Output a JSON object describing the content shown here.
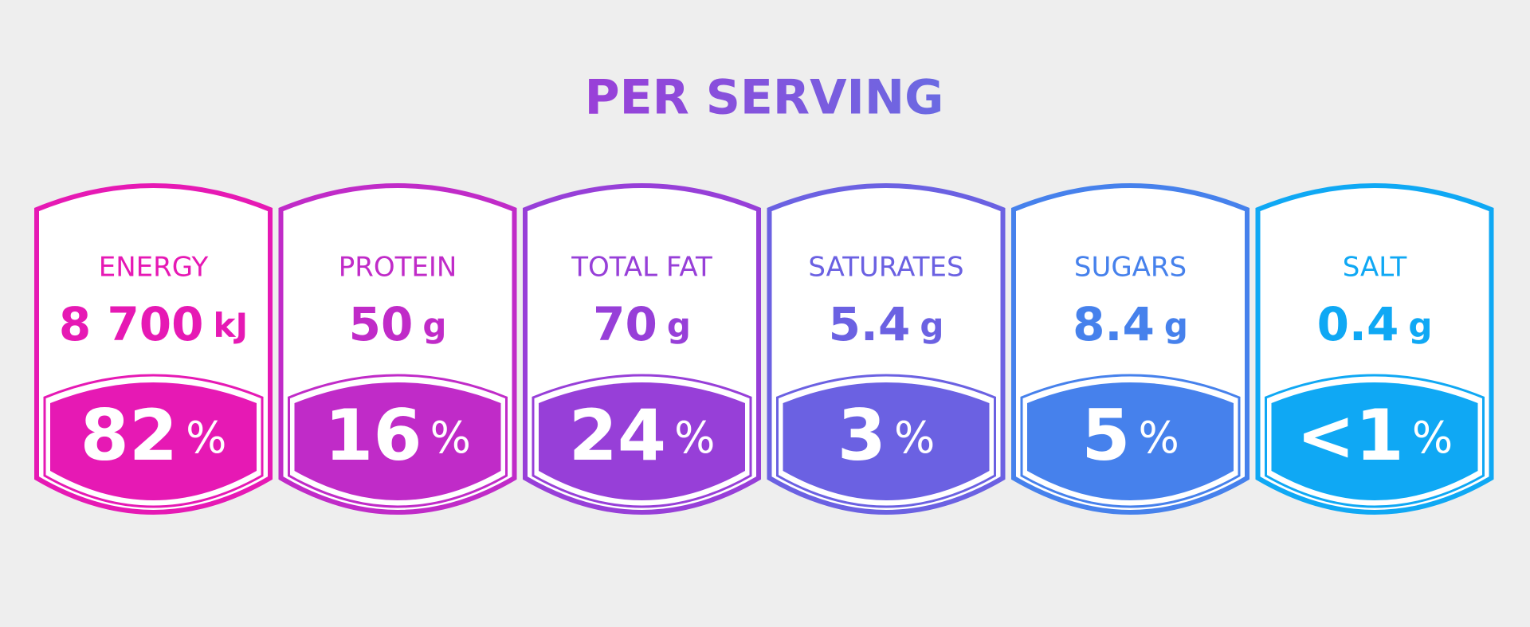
{
  "header": {
    "title": "PER SERVING"
  },
  "items": [
    {
      "label": "ENERGY",
      "amount": "8 700",
      "unit": "kJ",
      "percent": "82",
      "percent_unit": "%",
      "color": "#e619b4"
    },
    {
      "label": "PROTEIN",
      "amount": "50",
      "unit": "g",
      "percent": "16",
      "percent_unit": "%",
      "color": "#c02bc8"
    },
    {
      "label": "TOTAL FAT",
      "amount": "70",
      "unit": "g",
      "percent": "24",
      "percent_unit": "%",
      "color": "#973fd8"
    },
    {
      "label": "SATURATES",
      "amount": "5.4",
      "unit": "g",
      "percent": "3",
      "percent_unit": "%",
      "color": "#6b61e2"
    },
    {
      "label": "SUGARS",
      "amount": "8.4",
      "unit": "g",
      "percent": "5",
      "percent_unit": "%",
      "color": "#4681ec"
    },
    {
      "label": "SALT",
      "amount": "0.4",
      "unit": "g",
      "percent": "<1",
      "percent_unit": "%",
      "color": "#0fa8f4"
    }
  ]
}
